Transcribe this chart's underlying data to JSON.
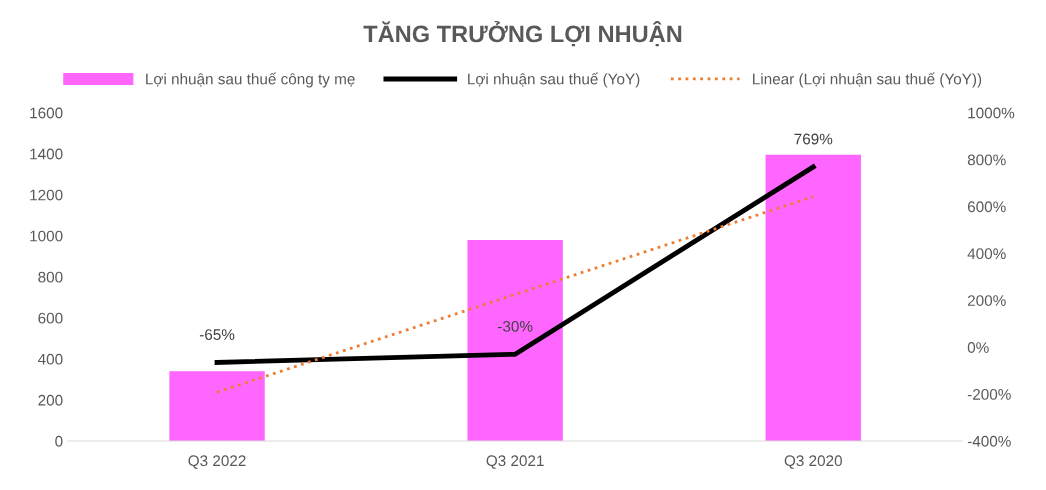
{
  "chart_data": {
    "type": "bar",
    "title": "TĂNG TRƯỞNG LỢI NHUẬN",
    "categories": [
      "Q3 2022",
      "Q3 2021",
      "Q3 2020"
    ],
    "series": [
      {
        "name": "Lợi nhuận sau thuế công ty mẹ",
        "color": "#ff66ff",
        "values": [
          340,
          980,
          1395
        ]
      },
      {
        "name": "Lợi nhuận sau thuế (YoY)",
        "type": "line",
        "axis": "y2",
        "color": "#000000",
        "line_style": "solid",
        "values": [
          -65,
          -30,
          769
        ],
        "value_labels": [
          "-65%",
          "-30%",
          "769%"
        ]
      },
      {
        "name": "Linear (Lợi nhuận sau thuế (YoY))",
        "type": "line",
        "axis": "y2",
        "color": "#ed7d31",
        "line_style": "dotted",
        "values": [
          -192,
          225,
          642
        ]
      }
    ],
    "ylim": [
      0,
      1600
    ],
    "yticks": [
      0,
      200,
      400,
      600,
      800,
      1000,
      1200,
      1400,
      1600
    ],
    "y2lim": [
      -400,
      1000
    ],
    "y2ticks": [
      {
        "value": -400,
        "label": "-400%"
      },
      {
        "value": -200,
        "label": "-200%"
      },
      {
        "value": 0,
        "label": "0%"
      },
      {
        "value": 200,
        "label": "200%"
      },
      {
        "value": 400,
        "label": "400%"
      },
      {
        "value": 600,
        "label": "600%"
      },
      {
        "value": 800,
        "label": "800%"
      },
      {
        "value": 1000,
        "label": "1000%"
      }
    ],
    "grid": false,
    "legend": "top"
  }
}
